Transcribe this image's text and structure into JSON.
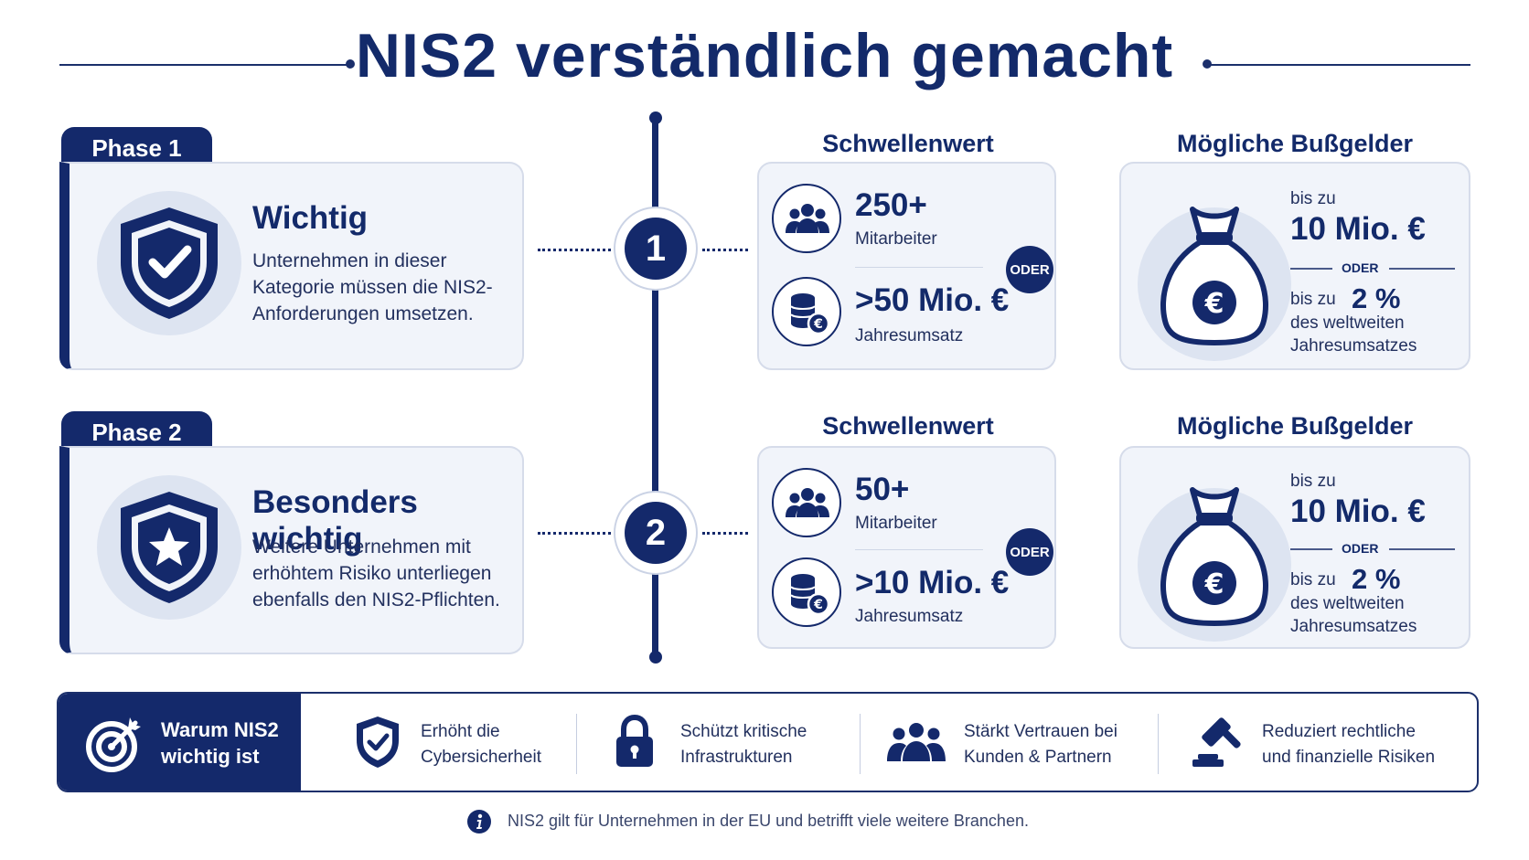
{
  "title": "NIS2 verständlich gemacht",
  "phases": [
    {
      "tab": "Phase 1",
      "heading": "Wichtig",
      "description": "Unternehmen in dieser Kategorie müssen die NIS2-Anforderungen umsetzen.",
      "step": "1",
      "icon": "shield-check-icon",
      "threshold": {
        "title": "Schwellenwert",
        "employees_value": "250+",
        "employees_label": "Mitarbeiter",
        "or_label": "ODER",
        "revenue_value": ">50 Mio. €",
        "revenue_label": "Jahresumsatz"
      },
      "fines": {
        "title": "Mögliche Bußgelder",
        "upto_label": "bis zu",
        "amount": "10 Mio. €",
        "or_label": "ODER",
        "upto_label2": "bis zu",
        "percent": "2 %",
        "percent_desc": "des weltweiten Jahresumsatzes"
      }
    },
    {
      "tab": "Phase 2",
      "heading": "Besonders wichtig",
      "description": "Weitere Unternehmen mit erhöhtem Risiko unterliegen ebenfalls den NIS2-Pflichten.",
      "step": "2",
      "icon": "shield-star-icon",
      "threshold": {
        "title": "Schwellenwert",
        "employees_value": "50+",
        "employees_label": "Mitarbeiter",
        "or_label": "ODER",
        "revenue_value": ">10 Mio. €",
        "revenue_label": "Jahresumsatz"
      },
      "fines": {
        "title": "Mögliche Bußgelder",
        "upto_label": "bis zu",
        "amount": "10 Mio. €",
        "or_label": "ODER",
        "upto_label2": "bis zu",
        "percent": "2 %",
        "percent_desc": "des weltweiten Jahresumsatzes"
      }
    }
  ],
  "benefits_bar": {
    "title": "Warum NIS2 wichtig ist",
    "title_icon": "target-icon",
    "items": [
      {
        "text": "Erhöht die Cybersicherheit",
        "icon": "shield-check-icon"
      },
      {
        "text": "Schützt kritische Infrastrukturen",
        "icon": "lock-icon"
      },
      {
        "text": "Stärkt Vertrauen bei Kunden & Partnern",
        "icon": "people-icon"
      },
      {
        "text": "Reduziert rechtliche und finanzielle Risiken",
        "icon": "gavel-icon"
      }
    ]
  },
  "footnote": "NIS2 gilt für Unternehmen in der EU und betrifft viele weitere Branchen.",
  "colors": {
    "primary": "#14296b",
    "card_bg": "#f1f4fa",
    "halo": "#dde4f1"
  }
}
